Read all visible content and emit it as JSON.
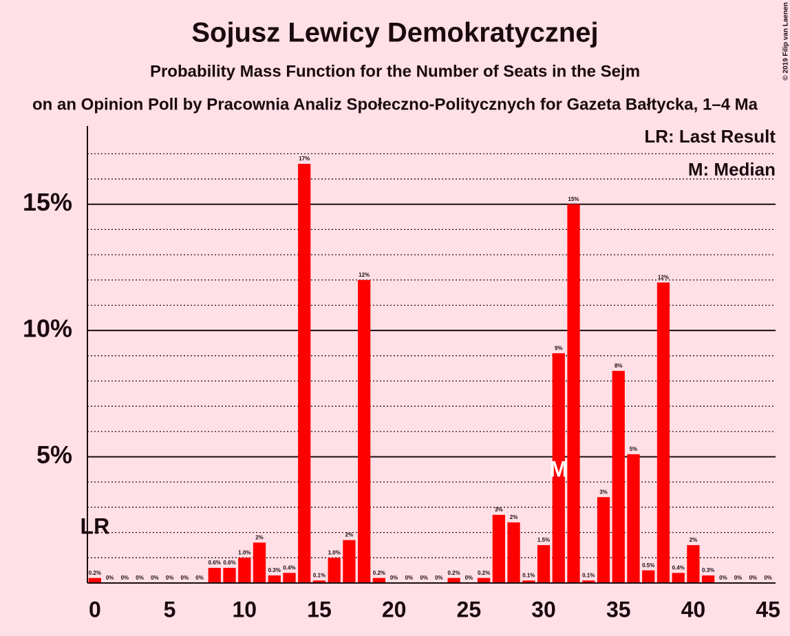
{
  "chart_data": {
    "type": "bar",
    "title": "Sojusz Lewicy Demokratycznej",
    "subtitle": "Probability Mass Function for the Number of Seats in the Sejm",
    "caption": "on an Opinion Poll by Pracownia Analiz Społeczno-Politycznych for Gazeta Bałtycka, 1–4 Ma",
    "copyright": "© 2019 Filip van Laenen",
    "legend": [
      "LR: Last Result",
      "M: Median"
    ],
    "last_result": {
      "seat": 0,
      "label": "LR"
    },
    "median": {
      "seat": 31,
      "label": "M"
    },
    "color": "#ff0000",
    "x": [
      0,
      1,
      2,
      3,
      4,
      5,
      6,
      7,
      8,
      9,
      10,
      11,
      12,
      13,
      14,
      15,
      16,
      17,
      18,
      19,
      20,
      21,
      22,
      23,
      24,
      25,
      26,
      27,
      28,
      29,
      30,
      31,
      32,
      33,
      34,
      35,
      36,
      37,
      38,
      39,
      40,
      41,
      42,
      43,
      44,
      45
    ],
    "values": [
      0.2,
      0,
      0,
      0,
      0,
      0,
      0,
      0,
      0.6,
      0.6,
      1.0,
      1.6,
      0.3,
      0.4,
      16.6,
      0.1,
      1.0,
      1.7,
      12.0,
      0.2,
      0,
      0,
      0,
      0,
      0.2,
      0,
      0.2,
      2.7,
      2.4,
      0.1,
      1.5,
      9.1,
      15.0,
      0.1,
      3.4,
      8.4,
      5.1,
      0.5,
      11.9,
      0.4,
      1.5,
      0.3,
      0,
      0,
      0,
      0
    ],
    "value_labels": [
      "0.2%",
      "0%",
      "0%",
      "0%",
      "0%",
      "0%",
      "0%",
      "0%",
      "0.6%",
      "0.6%",
      "1.0%",
      "2%",
      "0.3%",
      "0.4%",
      "17%",
      "0.1%",
      "1.0%",
      "2%",
      "12%",
      "0.2%",
      "0%",
      "0%",
      "0%",
      "0%",
      "0.2%",
      "0%",
      "0.2%",
      "3%",
      "2%",
      "0.1%",
      "1.5%",
      "9%",
      "15%",
      "0.1%",
      "3%",
      "8%",
      "5%",
      "0.5%",
      "12%",
      "0.4%",
      "2%",
      "0.3%",
      "0%",
      "0%",
      "0%",
      "0%"
    ],
    "xlim": [
      -0.5,
      45.5
    ],
    "xticks": [
      0,
      5,
      10,
      15,
      20,
      25,
      30,
      35,
      40,
      45
    ],
    "ylim": [
      0,
      18.1
    ],
    "yticks": [
      {
        "value": 5,
        "label": "5%"
      },
      {
        "value": 10,
        "label": "10%"
      },
      {
        "value": 15,
        "label": "15%"
      }
    ],
    "minor_yticks": [
      1,
      2,
      3,
      4,
      6,
      7,
      8,
      9,
      11,
      12,
      13,
      14,
      16,
      17
    ],
    "grid": true
  }
}
